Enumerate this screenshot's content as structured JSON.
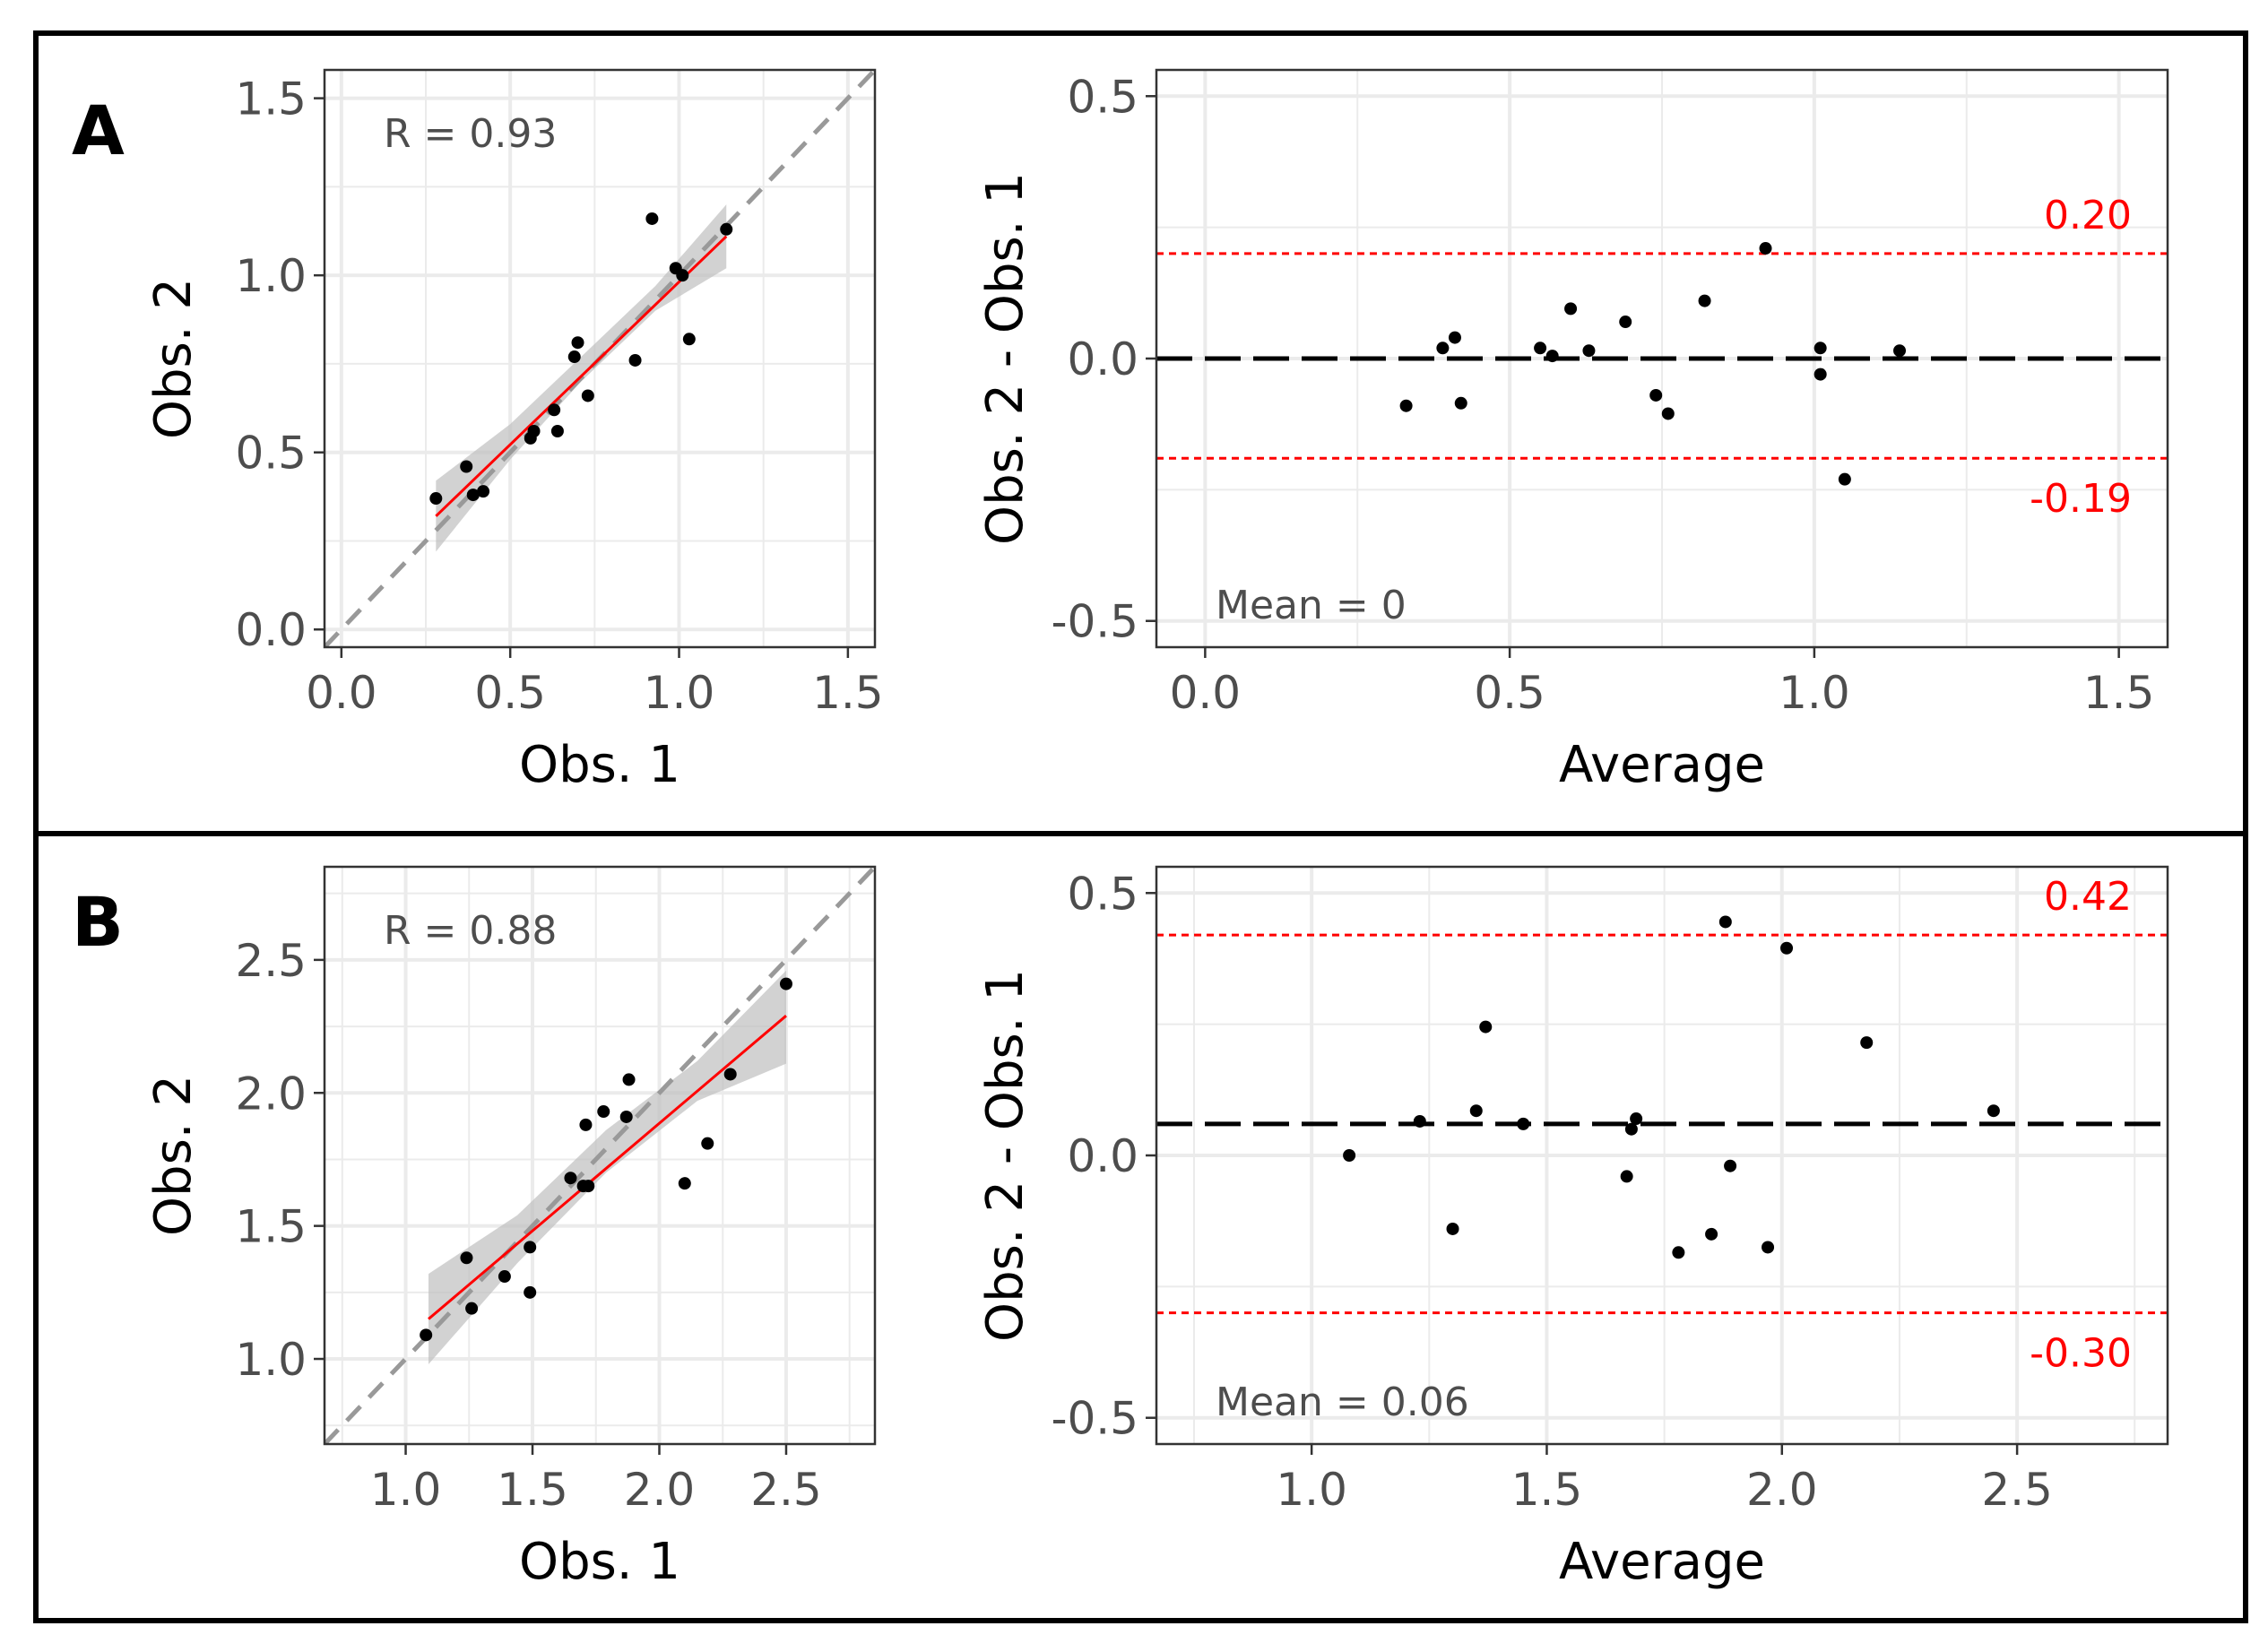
{
  "panels": [
    {
      "label": "A"
    },
    {
      "label": "B"
    }
  ],
  "colors": {
    "points": "#000000",
    "fit_line": "#ff0000",
    "confidence_band": "#bfbfbf",
    "identity_line": "#999999",
    "limits_of_agreement": "#ff0000",
    "mean_line": "#000000",
    "grid": "#ebebeb"
  },
  "chart_data": [
    {
      "id": "A-scatter",
      "type": "scatter",
      "xlabel": "Obs. 1",
      "ylabel": "Obs. 2",
      "xlim": [
        -0.05,
        1.58
      ],
      "ylim": [
        -0.05,
        1.58
      ],
      "xticks": [
        0.0,
        0.5,
        1.0,
        1.5
      ],
      "yticks": [
        0.0,
        0.5,
        1.0,
        1.5
      ],
      "tick_labels_x": [
        "0.0",
        "0.5",
        "1.0",
        "1.5"
      ],
      "tick_labels_y": [
        "0.0",
        "0.5",
        "1.0",
        "1.5"
      ],
      "annotation": "R = 0.93",
      "identity_line": true,
      "fit": {
        "x": [
          0.28,
          1.14
        ],
        "y": [
          0.32,
          1.11
        ]
      },
      "band": {
        "x": [
          0.28,
          0.5,
          0.71,
          0.93,
          1.14
        ],
        "lower": [
          0.22,
          0.48,
          0.7,
          0.9,
          1.02
        ],
        "upper": [
          0.42,
          0.58,
          0.77,
          0.97,
          1.2
        ]
      },
      "points": {
        "x": [
          0.28,
          0.37,
          0.39,
          0.42,
          0.56,
          0.57,
          0.63,
          0.64,
          0.69,
          0.7,
          0.73,
          0.87,
          0.92,
          0.99,
          1.01,
          1.03,
          1.14
        ],
        "y": [
          0.37,
          0.46,
          0.38,
          0.39,
          0.54,
          0.56,
          0.62,
          0.56,
          0.77,
          0.81,
          0.66,
          0.76,
          1.16,
          1.02,
          1.0,
          0.82,
          1.13
        ]
      }
    },
    {
      "id": "A-bland-altman",
      "type": "scatter",
      "xlabel": "Average",
      "ylabel": "Obs. 2 - Obs. 1",
      "xlim": [
        -0.08,
        1.58
      ],
      "ylim": [
        -0.55,
        0.55
      ],
      "xticks": [
        0.0,
        0.5,
        1.0,
        1.5
      ],
      "yticks": [
        -0.5,
        0.0,
        0.5
      ],
      "tick_labels_x": [
        "0.0",
        "0.5",
        "1.0",
        "1.5"
      ],
      "tick_labels_y": [
        "-0.5",
        "0.0",
        "0.5"
      ],
      "mean": 0,
      "mean_label": "Mean = 0",
      "upper_loa": 0.2,
      "lower_loa": -0.19,
      "upper_loa_label": "0.20",
      "lower_loa_label": "-0.19",
      "points": {
        "x": [
          0.33,
          0.39,
          0.41,
          0.42,
          0.55,
          0.57,
          0.6,
          0.63,
          0.69,
          0.74,
          0.76,
          0.82,
          0.92,
          1.01,
          1.01,
          1.05,
          1.14
        ],
        "y": [
          -0.09,
          0.02,
          0.04,
          -0.085,
          0.02,
          0.005,
          0.095,
          0.015,
          0.07,
          -0.07,
          -0.105,
          0.11,
          0.21,
          0.02,
          -0.03,
          -0.23,
          0.015
        ]
      }
    },
    {
      "id": "B-scatter",
      "type": "scatter",
      "xlabel": "Obs. 1",
      "ylabel": "Obs. 2",
      "xlim": [
        0.68,
        2.85
      ],
      "ylim": [
        0.68,
        2.85
      ],
      "xticks": [
        1.0,
        1.5,
        2.0,
        2.5
      ],
      "yticks": [
        1.0,
        1.5,
        2.0,
        2.5
      ],
      "tick_labels_x": [
        "1.0",
        "1.5",
        "2.0",
        "2.5"
      ],
      "tick_labels_y": [
        "1.0",
        "1.5",
        "2.0",
        "2.5"
      ],
      "annotation": "R = 0.88",
      "identity_line": true,
      "fit": {
        "x": [
          1.09,
          2.5
        ],
        "y": [
          1.15,
          2.29
        ]
      },
      "band": {
        "x": [
          1.09,
          1.44,
          1.79,
          2.15,
          2.5
        ],
        "lower": [
          0.98,
          1.36,
          1.7,
          1.97,
          2.11
        ],
        "upper": [
          1.32,
          1.54,
          1.86,
          2.12,
          2.46
        ]
      },
      "points": {
        "x": [
          1.08,
          1.24,
          1.26,
          1.39,
          1.49,
          1.49,
          1.65,
          1.7,
          1.71,
          1.72,
          1.78,
          1.87,
          1.88,
          2.1,
          2.19,
          2.28,
          2.5
        ],
        "y": [
          1.09,
          1.38,
          1.19,
          1.31,
          1.42,
          1.25,
          1.68,
          1.65,
          1.88,
          1.65,
          1.93,
          1.91,
          2.05,
          1.66,
          1.81,
          2.07,
          2.41
        ]
      }
    },
    {
      "id": "B-bland-altman",
      "type": "scatter",
      "xlabel": "Average",
      "ylabel": "Obs. 2 - Obs. 1",
      "xlim": [
        0.67,
        2.82
      ],
      "ylim": [
        -0.55,
        0.55
      ],
      "xticks": [
        1.0,
        1.5,
        2.0,
        2.5
      ],
      "yticks": [
        -0.5,
        0.0,
        0.5
      ],
      "tick_labels_x": [
        "1.0",
        "1.5",
        "2.0",
        "2.5"
      ],
      "tick_labels_y": [
        "-0.5",
        "0.0",
        "0.5"
      ],
      "mean": 0.06,
      "mean_label": "Mean = 0.06",
      "upper_loa": 0.42,
      "lower_loa": -0.3,
      "upper_loa_label": "0.42",
      "lower_loa_label": "-0.30",
      "points": {
        "x": [
          1.08,
          1.23,
          1.3,
          1.35,
          1.37,
          1.45,
          1.67,
          1.68,
          1.69,
          1.78,
          1.85,
          1.88,
          1.89,
          1.97,
          2.01,
          2.18,
          2.45
        ],
        "y": [
          0.0,
          0.065,
          -0.14,
          0.085,
          0.245,
          0.06,
          -0.04,
          0.05,
          0.07,
          -0.185,
          -0.15,
          0.445,
          -0.02,
          -0.175,
          0.395,
          0.215,
          0.085
        ]
      }
    }
  ]
}
